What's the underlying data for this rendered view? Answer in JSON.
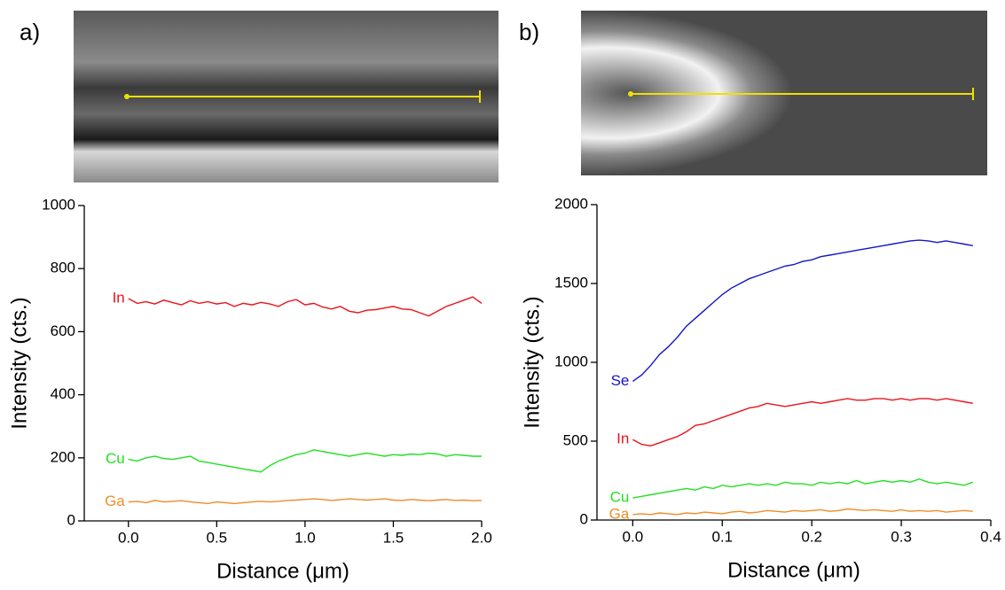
{
  "chart_data": [
    {
      "type": "line",
      "panel_label": "a)",
      "x_label": "Distance (μm)",
      "y_label": "Intensity (cts.)",
      "xlim": [
        -0.25,
        2.0
      ],
      "ylim": [
        0,
        1000
      ],
      "xticks": [
        {
          "value": 0,
          "label": "0.0"
        },
        0.5,
        {
          "value": 1,
          "label": "1.0"
        },
        1.5,
        {
          "value": 2,
          "label": "2.0"
        }
      ],
      "yticks": [
        0,
        200,
        400,
        600,
        800,
        1000
      ],
      "x": [
        0,
        0.05,
        0.1,
        0.15,
        0.2,
        0.25,
        0.3,
        0.35,
        0.4,
        0.45,
        0.5,
        0.55,
        0.6,
        0.65,
        0.7,
        0.75,
        0.8,
        0.85,
        0.9,
        0.95,
        1.0,
        1.05,
        1.1,
        1.15,
        1.2,
        1.25,
        1.3,
        1.35,
        1.4,
        1.45,
        1.5,
        1.55,
        1.6,
        1.65,
        1.7,
        1.75,
        1.8,
        1.85,
        1.9,
        1.95,
        2.0
      ],
      "series": [
        {
          "name": "In",
          "color": "#e8141c",
          "values": [
            705,
            690,
            695,
            688,
            700,
            692,
            685,
            698,
            690,
            695,
            688,
            692,
            680,
            690,
            685,
            693,
            688,
            680,
            695,
            702,
            685,
            690,
            678,
            672,
            680,
            665,
            660,
            668,
            670,
            675,
            680,
            672,
            670,
            660,
            650,
            665,
            680,
            690,
            700,
            710,
            690
          ]
        },
        {
          "name": "Cu",
          "color": "#22e022",
          "values": [
            195,
            190,
            200,
            205,
            198,
            195,
            200,
            205,
            190,
            185,
            180,
            175,
            170,
            165,
            160,
            155,
            175,
            190,
            200,
            210,
            215,
            225,
            220,
            215,
            210,
            205,
            210,
            215,
            210,
            205,
            210,
            208,
            212,
            210,
            215,
            212,
            205,
            210,
            208,
            205,
            205
          ]
        },
        {
          "name": "Ga",
          "color": "#f08c28",
          "values": [
            60,
            62,
            58,
            65,
            60,
            62,
            64,
            60,
            58,
            55,
            60,
            58,
            55,
            58,
            60,
            62,
            60,
            62,
            65,
            66,
            68,
            70,
            68,
            65,
            67,
            70,
            68,
            66,
            68,
            70,
            66,
            65,
            68,
            66,
            64,
            66,
            68,
            65,
            66,
            64,
            65
          ]
        }
      ]
    },
    {
      "type": "line",
      "panel_label": "b)",
      "x_label": "Distance (μm)",
      "y_label": "Intensity (cts.)",
      "xlim": [
        -0.04,
        0.4
      ],
      "ylim": [
        0,
        2000
      ],
      "xticks": [
        {
          "value": 0,
          "label": "0.0"
        },
        0.1,
        0.2,
        0.3,
        0.4
      ],
      "yticks": [
        0,
        500,
        1000,
        1500,
        2000
      ],
      "x": [
        0,
        0.01,
        0.02,
        0.03,
        0.04,
        0.05,
        0.06,
        0.07,
        0.08,
        0.09,
        0.1,
        0.11,
        0.12,
        0.13,
        0.14,
        0.15,
        0.16,
        0.17,
        0.18,
        0.19,
        0.2,
        0.21,
        0.22,
        0.23,
        0.24,
        0.25,
        0.26,
        0.27,
        0.28,
        0.29,
        0.3,
        0.31,
        0.32,
        0.33,
        0.34,
        0.35,
        0.36,
        0.37,
        0.38
      ],
      "series": [
        {
          "name": "Se",
          "color": "#1515c8",
          "values": [
            880,
            920,
            980,
            1050,
            1100,
            1160,
            1230,
            1280,
            1330,
            1380,
            1430,
            1470,
            1500,
            1530,
            1550,
            1570,
            1590,
            1610,
            1620,
            1640,
            1650,
            1670,
            1680,
            1690,
            1700,
            1710,
            1720,
            1730,
            1740,
            1750,
            1760,
            1770,
            1775,
            1770,
            1760,
            1770,
            1760,
            1750,
            1740
          ]
        },
        {
          "name": "In",
          "color": "#e8141c",
          "values": [
            510,
            480,
            470,
            490,
            510,
            530,
            560,
            600,
            610,
            630,
            650,
            670,
            690,
            710,
            720,
            740,
            730,
            720,
            730,
            740,
            750,
            740,
            750,
            760,
            770,
            760,
            760,
            770,
            770,
            760,
            770,
            760,
            770,
            770,
            760,
            770,
            760,
            750,
            740
          ]
        },
        {
          "name": "Cu",
          "color": "#22e022",
          "values": [
            140,
            150,
            160,
            170,
            180,
            190,
            200,
            190,
            210,
            200,
            220,
            210,
            220,
            230,
            220,
            230,
            220,
            240,
            230,
            230,
            220,
            240,
            230,
            240,
            230,
            250,
            230,
            240,
            250,
            240,
            250,
            240,
            260,
            240,
            230,
            240,
            230,
            220,
            240
          ]
        },
        {
          "name": "Ga",
          "color": "#f08c28",
          "values": [
            35,
            40,
            35,
            45,
            40,
            35,
            45,
            40,
            50,
            45,
            40,
            50,
            55,
            45,
            50,
            60,
            55,
            50,
            60,
            55,
            60,
            65,
            55,
            60,
            70,
            65,
            60,
            65,
            60,
            55,
            65,
            55,
            60,
            55,
            60,
            50,
            55,
            60,
            55
          ]
        }
      ]
    }
  ]
}
